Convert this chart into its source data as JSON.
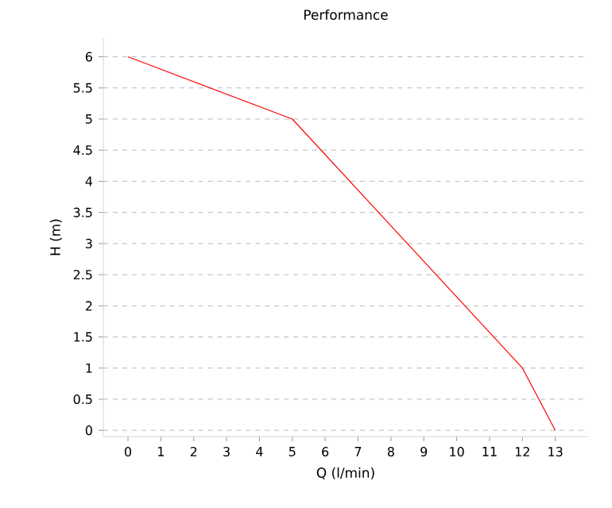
{
  "chart_data": {
    "type": "line",
    "title": "Performance",
    "xlabel": "Q (l/min)",
    "ylabel": "H (m)",
    "x": [
      0,
      5,
      12,
      13
    ],
    "series": [
      {
        "color": "#ff0000",
        "values": [
          6,
          5,
          1,
          0
        ]
      }
    ],
    "xlim": [
      -0.75,
      14
    ],
    "ylim": [
      -0.1,
      6.3
    ],
    "xticks": [
      0,
      1,
      2,
      3,
      4,
      5,
      6,
      7,
      8,
      9,
      10,
      11,
      12,
      13
    ],
    "yticks": [
      0,
      0.5,
      1,
      1.5,
      2,
      2.5,
      3,
      3.5,
      4,
      4.5,
      5,
      5.5,
      6
    ],
    "grid": "y",
    "marker": "none",
    "line_style": "solid"
  }
}
